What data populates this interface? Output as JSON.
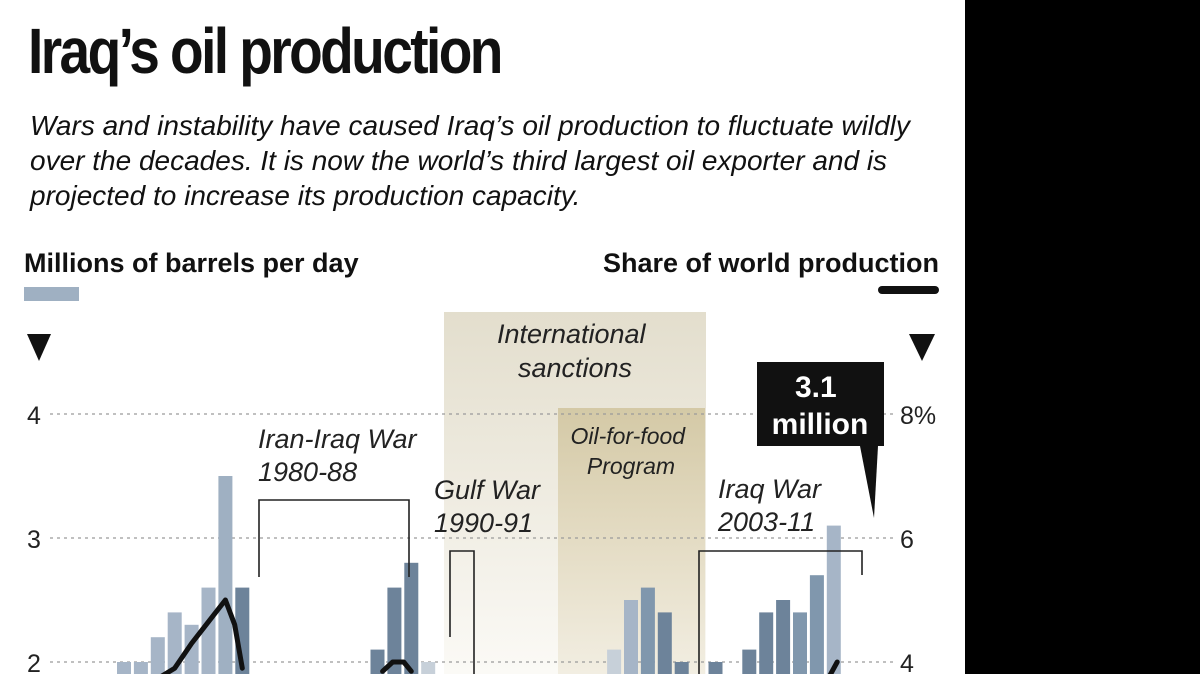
{
  "title": "Iraq’s oil production",
  "subtitle": "Wars and instability have caused Iraq’s oil production to fluctuate wildly over the decades. It is now the world’s third largest oil exporter and is projected to increase its production capacity.",
  "chart_data": {
    "type": "bar",
    "left_axis": {
      "label": "Millions of barrels per day",
      "ticks": [
        "4",
        "3",
        "2"
      ],
      "values": [
        4,
        3,
        2
      ]
    },
    "right_axis": {
      "label": "Share of world production",
      "ticks": [
        "8%",
        "6",
        "4"
      ],
      "values": [
        8,
        6,
        4
      ]
    },
    "legend_colors": {
      "bars": "#9fb0c2",
      "line": "#111111"
    },
    "series": [
      {
        "name": "Millions of barrels per day",
        "bars": [
          2.0,
          2.0,
          2.2,
          2.4,
          2.3,
          2.6,
          3.5,
          2.6,
          null,
          null,
          null,
          null,
          null,
          null,
          null,
          2.1,
          2.6,
          2.8,
          2.0,
          null,
          null,
          null,
          null,
          null,
          null,
          null,
          null,
          null,
          null,
          2.1,
          2.5,
          2.6,
          2.4,
          2.0,
          null,
          2.0,
          null,
          2.1,
          2.4,
          2.5,
          2.4,
          2.7,
          3.1
        ]
      },
      {
        "name": "Share of world production",
        "points": [
          [
            1.8,
            3.7
          ],
          [
            3,
            3.9
          ],
          [
            4,
            4.3
          ],
          [
            5,
            4.65
          ],
          [
            6,
            5.0
          ],
          [
            6.55,
            4.6
          ],
          [
            7,
            3.9
          ],
          [
            15.3,
            3.85
          ],
          [
            15.9,
            4.0
          ],
          [
            16.55,
            4.0
          ],
          [
            17,
            3.85
          ],
          [
            41.4,
            3.6
          ],
          [
            42.2,
            4.0
          ]
        ]
      }
    ],
    "bar_colors": [
      "#a6b5c7",
      "#a6b5c7",
      "#a6b5c7",
      "#a6b5c7",
      "#a6b5c7",
      "#a6b5c7",
      "#9fb0c2",
      "#6d839a",
      null,
      null,
      null,
      null,
      null,
      null,
      null,
      "#6d839a",
      "#6d839a",
      "#6d839a",
      "#c7d0d9",
      null,
      null,
      null,
      null,
      null,
      null,
      null,
      null,
      null,
      null,
      "#c7d0d9",
      "#a6b5c7",
      "#8097ad",
      "#6d839a",
      "#6d839a",
      null,
      "#6d839a",
      null,
      "#6d839a",
      "#6d839a",
      "#6d839a",
      "#8097ad",
      "#8097ad",
      "#a6b5c7"
    ],
    "annotations": {
      "sanctions": "International sanctions",
      "oil_for_food": "Oil-for-food Program",
      "iran_iraq_war": "Iran-Iraq War 1980-88",
      "gulf_war": "Gulf War 1990-91",
      "iraq_war": "Iraq War 2003-11",
      "callout": "3.1 million"
    },
    "grid": true
  }
}
